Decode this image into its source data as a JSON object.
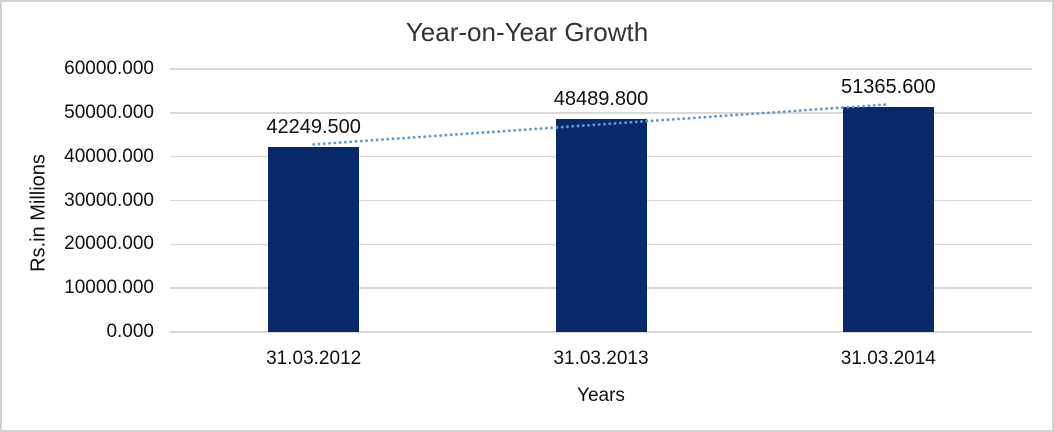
{
  "chart_data": {
    "type": "bar",
    "title": "Year-on-Year Growth",
    "xlabel": "Years",
    "ylabel": "Rs.in Millions",
    "categories": [
      "31.03.2012",
      "31.03.2013",
      "31.03.2014"
    ],
    "values": [
      42249.5,
      48489.8,
      51365.6
    ],
    "data_labels": [
      "42249.500",
      "48489.800",
      "51365.600"
    ],
    "ytick_labels": [
      "60000.000",
      "50000.000",
      "40000.000",
      "30000.000",
      "20000.000",
      "10000.000",
      "0.000"
    ],
    "ytick_values": [
      60000,
      50000,
      40000,
      30000,
      20000,
      10000,
      0
    ],
    "ylim": [
      0,
      60000
    ],
    "grid": true,
    "legend": "none",
    "trendline": {
      "type": "linear",
      "style": "dotted"
    },
    "colors": {
      "bar": "#082A68",
      "gridline": "#D9D9D9",
      "trendline": "#5B9BD5",
      "frame_border": "#D2D2D2",
      "text": "#111111",
      "title": "#333333"
    }
  }
}
